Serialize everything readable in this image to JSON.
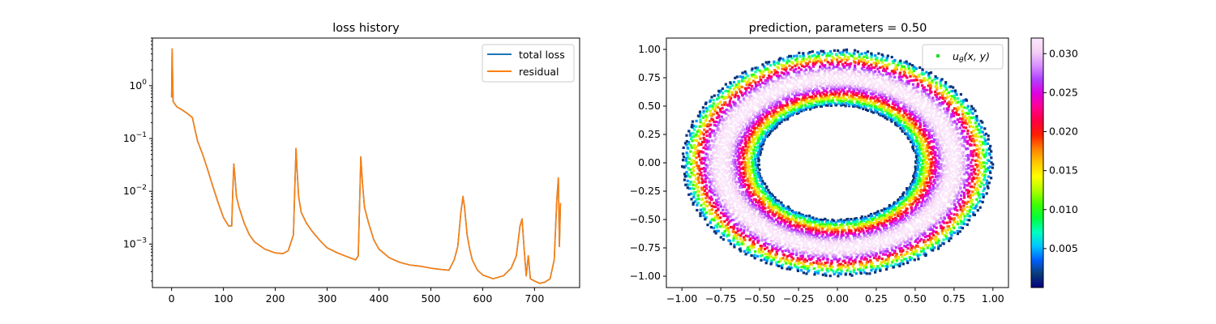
{
  "chart_data": [
    {
      "type": "line",
      "title": "loss history",
      "xlabel": "",
      "ylabel": "",
      "yscale": "log",
      "xlim": [
        -37,
        787
      ],
      "ylim": [
        0.00015,
        8
      ],
      "grid": false,
      "legend": {
        "placement": "top-right",
        "entries": [
          "total loss",
          "residual"
        ]
      },
      "x_ticks": [
        "0",
        "100",
        "200",
        "300",
        "400",
        "500",
        "600",
        "700"
      ],
      "x_tick_values": [
        0,
        100,
        200,
        300,
        400,
        500,
        600,
        700
      ],
      "y_ticks": [
        "10^0",
        "10^-1",
        "10^-2",
        "10^-3"
      ],
      "y_tick_values": [
        1,
        0.1,
        0.01,
        0.001
      ],
      "series": [
        {
          "name": "total loss",
          "color": "#1f77b4",
          "x": [
            0,
            1,
            3,
            10,
            20,
            30,
            40,
            45,
            50,
            60,
            70,
            80,
            90,
            100,
            110,
            116,
            118,
            120,
            122,
            125,
            130,
            140,
            150,
            160,
            180,
            200,
            215,
            225,
            235,
            238,
            240,
            242,
            245,
            250,
            260,
            270,
            285,
            300,
            320,
            340,
            355,
            360,
            363,
            365,
            368,
            372,
            380,
            390,
            400,
            420,
            440,
            460,
            480,
            500,
            520,
            535,
            545,
            552,
            558,
            562,
            565,
            570,
            575,
            580,
            590,
            600,
            620,
            640,
            655,
            665,
            672,
            676,
            680,
            684,
            688,
            692,
            700,
            710,
            720,
            730,
            738,
            743,
            746,
            748,
            750
          ],
          "y": [
            0.6,
            5,
            0.5,
            0.4,
            0.35,
            0.3,
            0.25,
            0.15,
            0.09,
            0.05,
            0.025,
            0.012,
            0.006,
            0.0032,
            0.0022,
            0.0022,
            0.01,
            0.033,
            0.02,
            0.008,
            0.005,
            0.0025,
            0.0015,
            0.0011,
            0.0008,
            0.00068,
            0.00066,
            0.00075,
            0.0015,
            0.015,
            0.065,
            0.025,
            0.008,
            0.004,
            0.0025,
            0.0018,
            0.0012,
            0.00085,
            0.00068,
            0.00057,
            0.0005,
            0.0006,
            0.008,
            0.045,
            0.015,
            0.005,
            0.0025,
            0.0012,
            0.0008,
            0.00055,
            0.00045,
            0.0004,
            0.00038,
            0.00035,
            0.00033,
            0.00032,
            0.0005,
            0.0009,
            0.004,
            0.008,
            0.005,
            0.0015,
            0.0008,
            0.0005,
            0.00032,
            0.00026,
            0.00022,
            0.00025,
            0.00035,
            0.0006,
            0.0022,
            0.003,
            0.0008,
            0.00025,
            0.0006,
            0.00022,
            0.0002,
            0.00018,
            0.00019,
            0.00022,
            0.0005,
            0.007,
            0.018,
            0.0009,
            0.006
          ]
        },
        {
          "name": "residual",
          "color": "#ff7f0e",
          "x": [
            0,
            1,
            3,
            10,
            20,
            30,
            40,
            45,
            50,
            60,
            70,
            80,
            90,
            100,
            110,
            116,
            118,
            120,
            122,
            125,
            130,
            140,
            150,
            160,
            180,
            200,
            215,
            225,
            235,
            238,
            240,
            242,
            245,
            250,
            260,
            270,
            285,
            300,
            320,
            340,
            355,
            360,
            363,
            365,
            368,
            372,
            380,
            390,
            400,
            420,
            440,
            460,
            480,
            500,
            520,
            535,
            545,
            552,
            558,
            562,
            565,
            570,
            575,
            580,
            590,
            600,
            620,
            640,
            655,
            665,
            672,
            676,
            680,
            684,
            688,
            692,
            700,
            710,
            720,
            730,
            738,
            743,
            746,
            748,
            750
          ],
          "y": [
            0.6,
            5,
            0.5,
            0.4,
            0.35,
            0.3,
            0.25,
            0.15,
            0.09,
            0.05,
            0.025,
            0.012,
            0.006,
            0.0032,
            0.0022,
            0.0022,
            0.01,
            0.033,
            0.02,
            0.008,
            0.005,
            0.0025,
            0.0015,
            0.0011,
            0.0008,
            0.00068,
            0.00066,
            0.00075,
            0.0015,
            0.015,
            0.065,
            0.025,
            0.008,
            0.004,
            0.0025,
            0.0018,
            0.0012,
            0.00085,
            0.00068,
            0.00057,
            0.0005,
            0.0006,
            0.008,
            0.045,
            0.015,
            0.005,
            0.0025,
            0.0012,
            0.0008,
            0.00055,
            0.00045,
            0.0004,
            0.00038,
            0.00035,
            0.00033,
            0.00032,
            0.0005,
            0.0009,
            0.004,
            0.008,
            0.005,
            0.0015,
            0.0008,
            0.0005,
            0.00032,
            0.00026,
            0.00022,
            0.00025,
            0.00035,
            0.0006,
            0.0022,
            0.003,
            0.0008,
            0.00025,
            0.0006,
            0.00022,
            0.0002,
            0.00018,
            0.00019,
            0.00022,
            0.0005,
            0.007,
            0.018,
            0.0009,
            0.006
          ]
        }
      ]
    },
    {
      "type": "scatter",
      "title": "prediction, parameters = 0.50",
      "xlabel": "",
      "ylabel": "",
      "xlim": [
        -1.1,
        1.1
      ],
      "ylim": [
        -1.1,
        1.1
      ],
      "grid": false,
      "legend": {
        "placement": "top-right",
        "entries": [
          "u_θ(x, y)"
        ]
      },
      "legend_label": {
        "main": "u",
        "sub": "θ",
        "args": "(x, y)"
      },
      "legend_marker_color": "#22dd22",
      "x_ticks": [
        "−1.00",
        "−0.75",
        "−0.50",
        "−0.25",
        "0.00",
        "0.25",
        "0.50",
        "0.75",
        "1.00"
      ],
      "x_tick_values": [
        -1,
        -0.75,
        -0.5,
        -0.25,
        0,
        0.25,
        0.5,
        0.75,
        1
      ],
      "y_ticks": [
        "1.00",
        "0.75",
        "0.50",
        "0.25",
        "0.00",
        "−0.25",
        "−0.50",
        "−0.75",
        "−1.00"
      ],
      "y_tick_values": [
        1,
        0.75,
        0.5,
        0.25,
        0,
        -0.25,
        -0.5,
        -0.75,
        -1
      ],
      "domain": {
        "shape": "annulus",
        "inner_radius": 0.5,
        "outer_radius": 1.0
      },
      "colormap": "gist_ncar",
      "colorbar": {
        "vmin": 0.0,
        "vmax": 0.032,
        "ticks": [
          "0.030",
          "0.025",
          "0.020",
          "0.015",
          "0.010",
          "0.005"
        ],
        "tick_values": [
          0.03,
          0.025,
          0.02,
          0.015,
          0.01,
          0.005
        ],
        "colors": [
          "#000080",
          "#0a3c78",
          "#0060ff",
          "#00c8ff",
          "#00ffc0",
          "#00ff40",
          "#40ff00",
          "#b0ff00",
          "#ffff00",
          "#ffc800",
          "#ff8000",
          "#ff2000",
          "#ff0040",
          "#ff0090",
          "#e000e0",
          "#b040ff",
          "#d890ff",
          "#f4d0f4",
          "#fbe8fb"
        ]
      },
      "value_peak": 0.032,
      "peak_radius": 0.75
    }
  ]
}
